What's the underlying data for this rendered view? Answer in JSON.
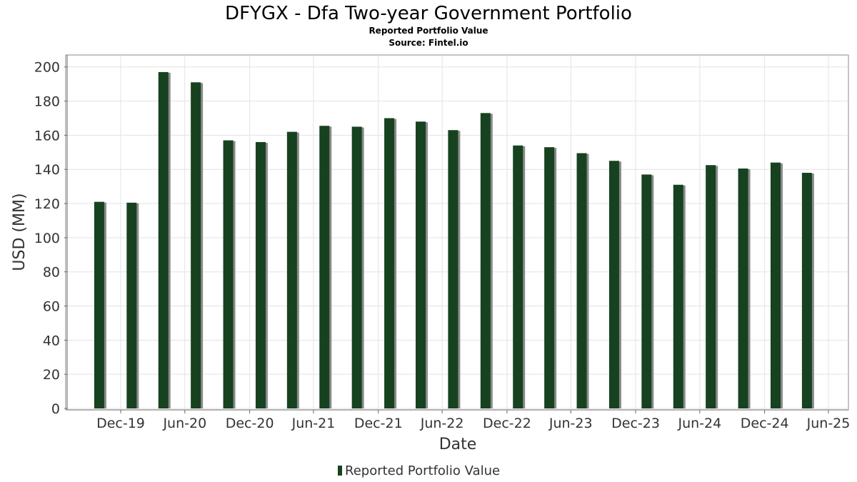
{
  "chart_data": {
    "type": "bar",
    "title": "DFYGX - Dfa Two-year Government Portfolio",
    "subtitle": "Reported Portfolio Value",
    "source": "Source: Fintel.io",
    "xlabel": "Date",
    "ylabel": "USD (MM)",
    "ylim": [
      0,
      207
    ],
    "yticks": [
      0,
      20,
      40,
      60,
      80,
      100,
      120,
      140,
      160,
      180,
      200
    ],
    "xlim": [
      "2019-08-01",
      "2025-06-30"
    ],
    "xticks": [
      {
        "date": "2019-12-31",
        "label": "Dec-19"
      },
      {
        "date": "2020-06-30",
        "label": "Jun-20"
      },
      {
        "date": "2020-12-31",
        "label": "Dec-20"
      },
      {
        "date": "2021-06-30",
        "label": "Jun-21"
      },
      {
        "date": "2021-12-31",
        "label": "Dec-21"
      },
      {
        "date": "2022-06-30",
        "label": "Jun-22"
      },
      {
        "date": "2022-12-31",
        "label": "Dec-22"
      },
      {
        "date": "2023-06-30",
        "label": "Jun-23"
      },
      {
        "date": "2023-12-31",
        "label": "Dec-23"
      },
      {
        "date": "2024-06-30",
        "label": "Jun-24"
      },
      {
        "date": "2024-12-31",
        "label": "Dec-24"
      },
      {
        "date": "2025-06-30",
        "label": "Jun-25"
      }
    ],
    "grid": true,
    "legend_position": "bottom",
    "series": [
      {
        "name": "Reported Portfolio Value",
        "color": "#17421f",
        "points": [
          {
            "date": "2019-10-31",
            "value": 121
          },
          {
            "date": "2020-01-31",
            "value": 120.5
          },
          {
            "date": "2020-04-30",
            "value": 197
          },
          {
            "date": "2020-07-31",
            "value": 191
          },
          {
            "date": "2020-10-31",
            "value": 157
          },
          {
            "date": "2021-01-31",
            "value": 156
          },
          {
            "date": "2021-04-30",
            "value": 162
          },
          {
            "date": "2021-07-31",
            "value": 165.5
          },
          {
            "date": "2021-10-31",
            "value": 165
          },
          {
            "date": "2022-01-31",
            "value": 170
          },
          {
            "date": "2022-04-30",
            "value": 168
          },
          {
            "date": "2022-07-31",
            "value": 163
          },
          {
            "date": "2022-10-31",
            "value": 173
          },
          {
            "date": "2023-01-31",
            "value": 154
          },
          {
            "date": "2023-04-30",
            "value": 153
          },
          {
            "date": "2023-07-31",
            "value": 149.5
          },
          {
            "date": "2023-10-31",
            "value": 145
          },
          {
            "date": "2024-01-31",
            "value": 137
          },
          {
            "date": "2024-04-30",
            "value": 131
          },
          {
            "date": "2024-07-31",
            "value": 142.5
          },
          {
            "date": "2024-10-31",
            "value": 140.5
          },
          {
            "date": "2025-01-31",
            "value": 144
          },
          {
            "date": "2025-04-30",
            "value": 138
          }
        ]
      }
    ]
  }
}
